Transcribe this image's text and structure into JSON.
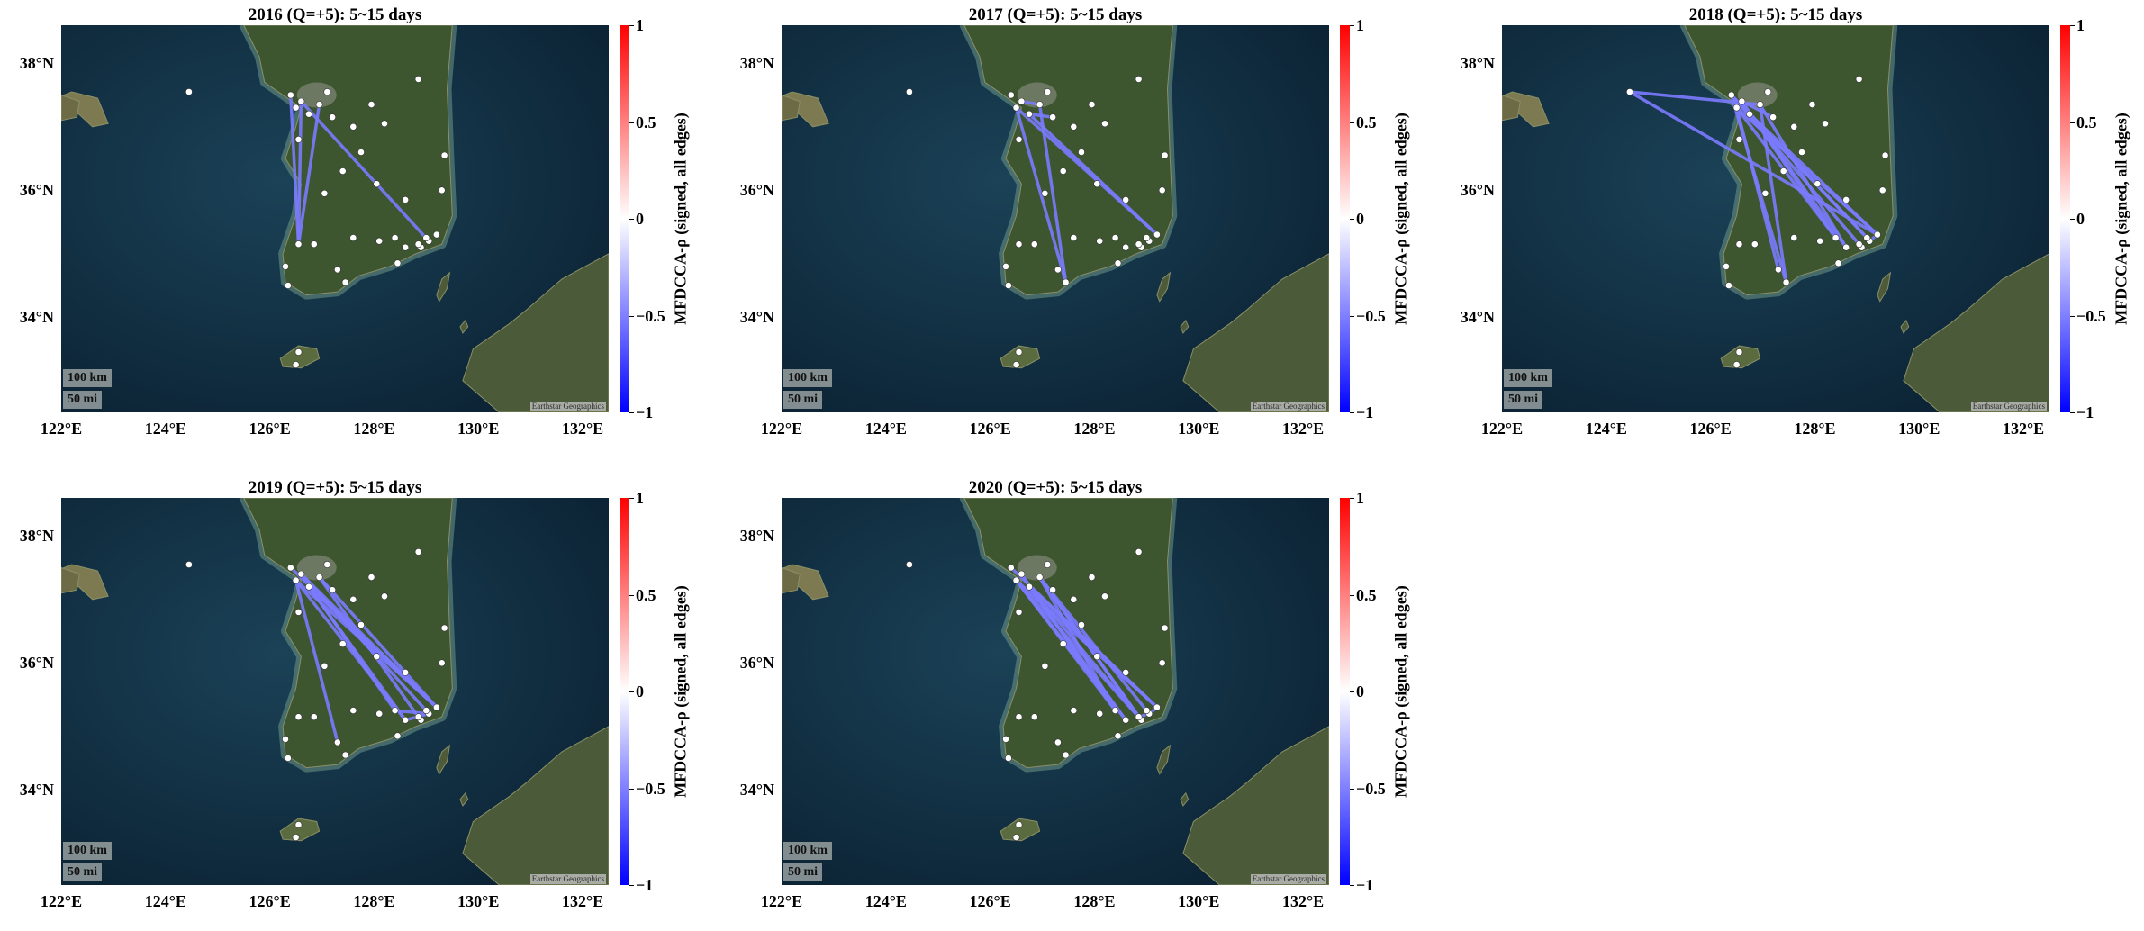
{
  "panels": [
    {
      "title": "2016 (Q=+5): 5~15 days",
      "edges": [
        [
          4,
          0
        ],
        [
          6,
          0
        ],
        [
          3,
          0
        ],
        [
          6,
          1
        ]
      ]
    },
    {
      "title": "2017 (Q=+5): 5~15 days",
      "edges": [
        [
          2,
          10
        ],
        [
          3,
          10
        ],
        [
          5,
          9
        ],
        [
          5,
          12
        ],
        [
          2,
          12
        ],
        [
          6,
          3
        ]
      ]
    },
    {
      "title": "2018 (Q=+5): 5~15 days",
      "edges": [
        [
          8,
          3
        ],
        [
          8,
          12
        ],
        [
          4,
          17
        ],
        [
          3,
          13
        ],
        [
          6,
          14
        ],
        [
          4,
          16
        ],
        [
          5,
          12
        ],
        [
          2,
          12
        ],
        [
          3,
          10
        ],
        [
          2,
          11
        ],
        [
          4,
          10
        ],
        [
          6,
          9
        ],
        [
          2,
          14
        ],
        [
          6,
          13
        ],
        [
          1,
          12
        ],
        [
          5,
          17
        ]
      ]
    },
    {
      "title": "2019 (Q=+5): 5~15 days",
      "edges": [
        [
          3,
          16
        ],
        [
          3,
          12
        ],
        [
          5,
          12
        ],
        [
          2,
          12
        ],
        [
          6,
          14
        ],
        [
          4,
          12
        ],
        [
          1,
          13
        ],
        [
          1,
          14
        ],
        [
          2,
          11
        ],
        [
          5,
          13
        ],
        [
          6,
          12
        ],
        [
          2,
          13
        ],
        [
          6,
          17
        ]
      ]
    },
    {
      "title": "2020 (Q=+5): 5~15 days",
      "edges": [
        [
          3,
          16
        ],
        [
          5,
          16
        ],
        [
          2,
          13
        ],
        [
          3,
          17
        ],
        [
          5,
          13
        ],
        [
          2,
          12
        ],
        [
          3,
          14
        ],
        [
          1,
          16
        ],
        [
          5,
          12
        ],
        [
          2,
          14
        ],
        [
          4,
          12
        ],
        [
          6,
          14
        ],
        [
          1,
          12
        ],
        [
          3,
          15
        ],
        [
          2,
          15
        ]
      ]
    }
  ],
  "stations": [
    [
      126.55,
      35.15
    ],
    [
      129.05,
      35.2
    ],
    [
      126.5,
      37.3
    ],
    [
      126.95,
      37.35
    ],
    [
      126.4,
      37.5
    ],
    [
      126.75,
      37.2
    ],
    [
      126.6,
      37.4
    ],
    [
      127.1,
      37.55
    ],
    [
      124.45,
      37.55
    ],
    [
      127.2,
      37.15
    ],
    [
      127.45,
      34.55
    ],
    [
      127.3,
      34.75
    ],
    [
      129.2,
      35.3
    ],
    [
      128.6,
      35.1
    ],
    [
      128.4,
      35.25
    ],
    [
      128.9,
      35.1
    ],
    [
      128.85,
      35.15
    ],
    [
      129.0,
      35.25
    ],
    [
      127.4,
      36.3
    ],
    [
      128.6,
      35.85
    ],
    [
      127.05,
      35.95
    ],
    [
      126.85,
      35.15
    ],
    [
      128.1,
      35.2
    ],
    [
      127.6,
      35.25
    ],
    [
      126.3,
      34.8
    ],
    [
      128.2,
      37.05
    ],
    [
      128.85,
      37.75
    ],
    [
      129.35,
      36.55
    ],
    [
      129.3,
      36.0
    ],
    [
      127.75,
      36.6
    ],
    [
      127.6,
      37.0
    ],
    [
      126.35,
      34.5
    ],
    [
      126.55,
      33.45
    ],
    [
      126.5,
      33.25
    ],
    [
      128.45,
      34.85
    ],
    [
      126.55,
      36.8
    ],
    [
      128.05,
      36.1
    ],
    [
      127.95,
      37.35
    ]
  ],
  "xticks": [
    "122°E",
    "124°E",
    "126°E",
    "128°E",
    "130°E",
    "132°E"
  ],
  "yticks": [
    "38°N",
    "36°N",
    "34°N"
  ],
  "colorbar": {
    "label": "MFDCCA-ρ (signed, all edges)",
    "ticks": [
      "1",
      "0.5",
      "0",
      "−0.5",
      "−1"
    ],
    "range": [
      -1,
      1
    ]
  },
  "scalebar": {
    "km": "100 km",
    "mi": "50 mi"
  },
  "attribution": "Earthstar Geographics",
  "map_extent": {
    "lon": [
      122,
      132.5
    ],
    "lat": [
      32.5,
      38.6
    ]
  },
  "colors": {
    "edge": "#7b7bff",
    "node": "#ffffff",
    "sea": "#0f2c40",
    "land": "#3e5a2c"
  }
}
